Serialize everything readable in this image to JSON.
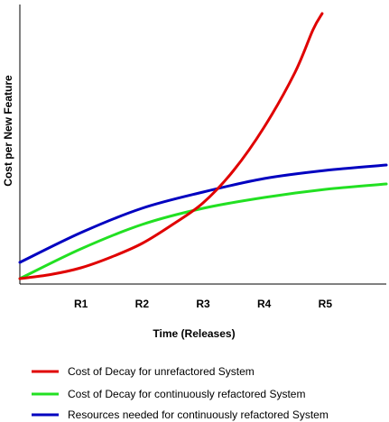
{
  "chart_data": {
    "type": "line",
    "title": "",
    "xlabel": "Time (Releases)",
    "ylabel": "Cost per New Feature",
    "categories": [
      "R1",
      "R2",
      "R3",
      "R4",
      "R5"
    ],
    "xlim": [
      0,
      6
    ],
    "ylim": [
      0,
      10
    ],
    "grid": false,
    "legend_position": "bottom",
    "series": [
      {
        "name": "Cost of Decay for unrefactored System",
        "color": "#e00000",
        "x": [
          0,
          0.5,
          1,
          1.5,
          2,
          2.5,
          3,
          3.5,
          4,
          4.5,
          4.8,
          4.95
        ],
        "y": [
          0.2,
          0.35,
          0.6,
          1.0,
          1.5,
          2.2,
          3.0,
          4.2,
          5.8,
          7.8,
          9.4,
          10.0
        ]
      },
      {
        "name": "Cost of Decay for continuously refactored System",
        "color": "#22e022",
        "x": [
          0,
          1,
          2,
          3,
          4,
          5,
          6
        ],
        "y": [
          0.2,
          1.3,
          2.2,
          2.8,
          3.2,
          3.5,
          3.7
        ]
      },
      {
        "name": "Resources needed for continuously refactored System",
        "color": "#0000c0",
        "x": [
          0,
          1,
          2,
          3,
          4,
          5,
          6
        ],
        "y": [
          0.8,
          1.9,
          2.8,
          3.4,
          3.9,
          4.2,
          4.4
        ]
      }
    ]
  }
}
